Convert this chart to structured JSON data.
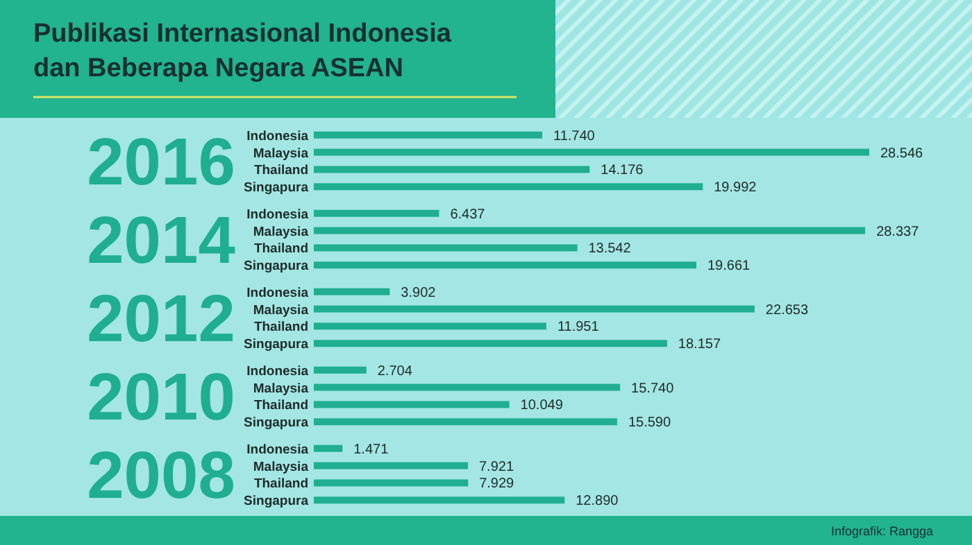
{
  "chart_data": {
    "type": "bar",
    "orientation": "horizontal",
    "title": "Publikasi Internasional Indonesia dan Beberapa Negara ASEAN",
    "categories": [
      "2016",
      "2014",
      "2012",
      "2010",
      "2008"
    ],
    "series": [
      {
        "name": "Indonesia",
        "color": "#1fae8f",
        "values": [
          11740,
          6437,
          3902,
          2704,
          1471
        ],
        "value_labels": [
          "11.740",
          "6.437",
          "3.902",
          "2.704",
          "1.471"
        ]
      },
      {
        "name": "Malaysia",
        "color": "#1fae8f",
        "values": [
          28546,
          28337,
          22653,
          15740,
          7921
        ],
        "value_labels": [
          "28.546",
          "28.337",
          "22.653",
          "15.740",
          "7.921"
        ]
      },
      {
        "name": "Thailand",
        "color": "#1fae8f",
        "values": [
          14176,
          13542,
          11951,
          10049,
          7929
        ],
        "value_labels": [
          "14.176",
          "13.542",
          "11.951",
          "10.049",
          "7.929"
        ]
      },
      {
        "name": "Singapura",
        "color": "#1fae8f",
        "values": [
          19992,
          19661,
          18157,
          15590,
          12890
        ],
        "value_labels": [
          "19.992",
          "19.661",
          "18.157",
          "15.590",
          "12.890"
        ]
      }
    ],
    "grid": false,
    "annotations": [
      "Infografik: Rangga"
    ]
  }
}
